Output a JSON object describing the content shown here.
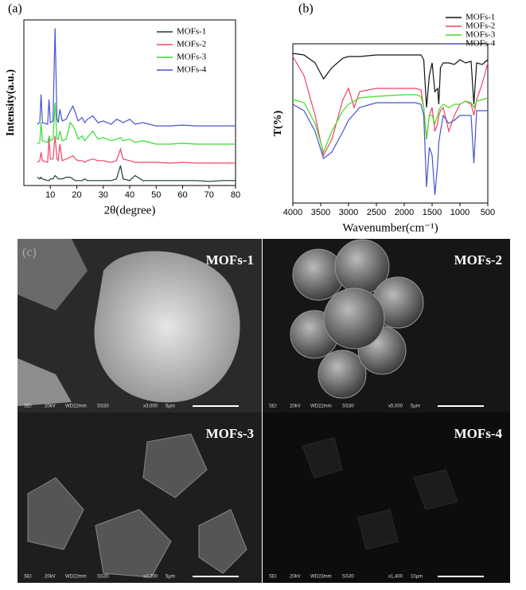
{
  "chart_data": [
    {
      "type": "line",
      "panel": "(a)",
      "xlabel": "2θ(degree)",
      "ylabel": "Intensity(a.u.)",
      "x": [
        5,
        6,
        6.5,
        7,
        9,
        9.5,
        10,
        11,
        11.8,
        12.5,
        13,
        13.6,
        14.5,
        16,
        17.5,
        18.5,
        19.5,
        20.5,
        22,
        23,
        24,
        26,
        28,
        30,
        33,
        35,
        36.5,
        37.5,
        40,
        42,
        45,
        50,
        55,
        60,
        65,
        70,
        75,
        80
      ],
      "xlim": [
        0,
        80
      ],
      "xticks": [
        10,
        20,
        30,
        40,
        50,
        60,
        70,
        80
      ],
      "ylim": [
        0,
        100
      ],
      "legend": "upper right",
      "series": [
        {
          "name": "MOFs-1",
          "color": "#1e3a3a",
          "values": [
            5,
            4,
            5,
            4,
            3,
            3,
            4,
            4,
            6,
            5,
            4,
            4,
            4,
            5,
            5,
            4,
            3,
            3,
            3,
            4,
            3,
            3,
            3,
            3,
            3,
            4,
            12,
            4,
            3,
            6,
            3,
            3,
            3,
            3,
            3,
            2.5,
            3,
            3
          ]
        },
        {
          "name": "MOFs-2",
          "color": "#ee4466",
          "values": [
            14,
            15,
            20,
            15,
            14,
            28,
            16,
            16,
            30,
            16,
            15,
            25,
            15,
            16,
            17,
            18,
            16,
            15,
            15,
            14,
            15,
            16,
            15,
            15,
            14,
            15,
            22,
            16,
            15,
            14,
            14,
            14,
            13.5,
            14,
            13.5,
            13.5,
            13.5,
            13.5
          ]
        },
        {
          "name": "MOFs-3",
          "color": "#33dd33",
          "values": [
            25,
            26,
            38,
            27,
            26,
            30,
            27,
            28,
            50,
            28,
            28,
            33,
            27,
            28,
            38,
            36,
            33,
            28,
            30,
            27,
            29,
            33,
            28,
            29,
            27,
            28,
            29,
            27,
            28,
            26,
            27,
            25,
            25,
            25.5,
            25,
            25,
            25,
            25
          ]
        },
        {
          "name": "MOFs-4",
          "color": "#4455cc",
          "values": [
            37,
            38,
            55,
            38,
            37,
            52,
            38,
            39,
            95,
            40,
            38,
            46,
            39,
            40,
            45,
            48,
            44,
            39,
            41,
            38,
            40,
            42,
            38,
            39,
            37,
            40,
            39,
            38,
            40,
            37,
            38,
            36,
            36,
            36.5,
            36,
            36,
            36,
            36
          ]
        }
      ]
    },
    {
      "type": "line",
      "panel": "(b)",
      "xlabel": "Wavenumber(cm⁻¹)",
      "ylabel": "T(%)",
      "x": [
        4000,
        3800,
        3600,
        3450,
        3300,
        3100,
        3000,
        2900,
        2800,
        2500,
        2000,
        1800,
        1700,
        1650,
        1600,
        1550,
        1500,
        1450,
        1400,
        1380,
        1350,
        1300,
        1200,
        1100,
        1000,
        900,
        800,
        750,
        700,
        600,
        500
      ],
      "xlim": [
        4000,
        500
      ],
      "xticks": [
        4000,
        3500,
        3000,
        2500,
        2000,
        1500,
        1000,
        500
      ],
      "ylim": [
        0,
        100
      ],
      "legend": "upper right",
      "series": [
        {
          "name": "MOFs-1",
          "color": "#111111",
          "values": [
            94,
            93,
            88,
            78,
            85,
            91,
            92,
            92,
            92,
            93,
            93,
            93,
            93,
            90,
            60,
            80,
            88,
            70,
            72,
            62,
            85,
            88,
            88,
            87,
            90,
            88,
            89,
            62,
            88,
            87,
            90
          ]
        },
        {
          "name": "MOFs-2",
          "color": "#ee4466",
          "values": [
            92,
            80,
            55,
            30,
            40,
            65,
            72,
            60,
            70,
            72,
            72,
            72,
            71,
            60,
            40,
            55,
            60,
            45,
            50,
            55,
            58,
            60,
            45,
            55,
            62,
            64,
            62,
            55,
            65,
            75,
            88
          ]
        },
        {
          "name": "MOFs-3",
          "color": "#44dd22",
          "values": [
            65,
            63,
            50,
            32,
            45,
            58,
            62,
            64,
            66,
            67,
            68,
            68,
            67,
            60,
            40,
            55,
            55,
            50,
            55,
            58,
            60,
            62,
            60,
            62,
            62,
            64,
            63,
            60,
            64,
            65,
            66
          ]
        },
        {
          "name": "MOFs-4",
          "color": "#4455cc",
          "values": [
            62,
            58,
            45,
            28,
            32,
            45,
            52,
            56,
            60,
            63,
            63,
            63,
            62,
            55,
            10,
            35,
            30,
            5,
            25,
            38,
            45,
            55,
            50,
            52,
            55,
            55,
            55,
            25,
            58,
            58,
            58
          ]
        }
      ]
    }
  ],
  "sem": {
    "panel": "(c)",
    "images": [
      {
        "title": "MOFs-1",
        "info": [
          "SEI",
          "20kV",
          "WD22mm",
          "SS30",
          "x3,000",
          "5μm"
        ]
      },
      {
        "title": "MOFs-2",
        "info": [
          "SEI",
          "20kV",
          "WD22mm",
          "SS30",
          "x5,000",
          "5μm"
        ]
      },
      {
        "title": "MOFs-3",
        "info": [
          "SEI",
          "20kV",
          "WD22mm",
          "SS30",
          "x3,700",
          "5μm"
        ]
      },
      {
        "title": "MOFs-4",
        "info": [
          "SEI",
          "20kV",
          "WD23mm",
          "SS30",
          "x1,400",
          "10μm"
        ]
      }
    ]
  }
}
